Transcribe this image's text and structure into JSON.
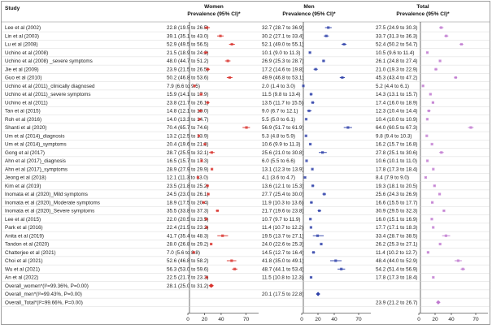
{
  "chart_data": {
    "type": "forest",
    "title": "",
    "study_header": "Study",
    "panels": [
      {
        "name": "Women",
        "subtitle": "Prevalence (95% CI)*",
        "color": "#d9322c",
        "ticks": [
          0,
          20,
          40,
          70
        ],
        "xlim": [
          0,
          85
        ]
      },
      {
        "name": "Men",
        "subtitle": "Prevalence (95% CI)*",
        "color": "#2c3fa8",
        "ticks": [
          0,
          20,
          40,
          70
        ],
        "xlim": [
          0,
          85
        ]
      },
      {
        "name": "Total",
        "subtitle": "Prevalence (95% CI)*",
        "color": "#c07ad0",
        "ticks": [
          0,
          20,
          40,
          70
        ],
        "xlim": [
          0,
          85
        ]
      }
    ],
    "rows": [
      {
        "study": "Lee et al (2002)",
        "women": [
          22.8,
          19.5,
          26.5
        ],
        "men": [
          32.7,
          28.7,
          36.9
        ],
        "total": [
          27.5,
          24.9,
          30.3
        ]
      },
      {
        "study": "Lin et al (2003)",
        "women": [
          39.1,
          35.1,
          43.0
        ],
        "men": [
          30.2,
          27.1,
          33.4
        ],
        "total": [
          33.7,
          31.3,
          36.3
        ]
      },
      {
        "study": "Lu et al (2008)",
        "women": [
          52.9,
          49.5,
          56.5
        ],
        "men": [
          52.1,
          49.0,
          55.1
        ],
        "total": [
          52.4,
          50.2,
          54.7
        ]
      },
      {
        "study": "Uchino et al (2008)",
        "women": [
          21.5,
          18.9,
          24.2
        ],
        "men": [
          10.1,
          9.0,
          11.3
        ],
        "total": [
          10.5,
          9.6,
          11.4
        ]
      },
      {
        "study": "Uchino et al (2008) _severe symptoms",
        "women": [
          48.0,
          44.7,
          51.2
        ],
        "men": [
          26.9,
          25.3,
          28.7
        ],
        "total": [
          26.1,
          24.8,
          27.4
        ]
      },
      {
        "study": "Jie et al (2009)",
        "women": [
          23.9,
          21.5,
          26.5
        ],
        "men": [
          17.2,
          14.6,
          19.8
        ],
        "total": [
          21.0,
          19.3,
          22.9
        ]
      },
      {
        "study": "Guo et al (2010)",
        "women": [
          50.2,
          46.8,
          53.6
        ],
        "men": [
          49.9,
          46.8,
          53.1
        ],
        "total": [
          45.3,
          43.4,
          47.2
        ]
      },
      {
        "study": "Uchino et al (2011)_clinically diagnosed",
        "women": [
          7.9,
          6.6,
          9.5
        ],
        "men": [
          2.0,
          1.4,
          3.0
        ],
        "total": [
          5.2,
          4.4,
          6.1
        ]
      },
      {
        "study": "Uchino et al (2011)_severe symptoms",
        "women": [
          15.9,
          14.1,
          17.9
        ],
        "men": [
          11.5,
          9.8,
          13.4
        ],
        "total": [
          14.3,
          13.1,
          15.7
        ]
      },
      {
        "study": "Uchino et al (2011)",
        "women": [
          23.8,
          21.7,
          26.1
        ],
        "men": [
          13.5,
          11.7,
          15.5
        ],
        "total": [
          17.4,
          16.0,
          18.9
        ]
      },
      {
        "study": "Tan et al (2015)",
        "women": [
          14.8,
          12.1,
          18.0
        ],
        "men": [
          9.0,
          6.7,
          12.1
        ],
        "total": [
          12.3,
          10.4,
          14.4
        ]
      },
      {
        "study": "Roh et al (2016)",
        "women": [
          14.0,
          13.3,
          14.7
        ],
        "men": [
          5.5,
          5.0,
          6.1
        ],
        "total": [
          10.4,
          10.0,
          10.9
        ]
      },
      {
        "study": "Shanti et al (2020)",
        "women": [
          70.4,
          65.7,
          74.6
        ],
        "men": [
          56.9,
          51.7,
          61.9
        ],
        "total": [
          64.0,
          60.5,
          67.3
        ]
      },
      {
        "study": "Um et al (2014)_diagnosis",
        "women": [
          13.2,
          12.5,
          13.9
        ],
        "men": [
          5.3,
          4.8,
          5.9
        ],
        "total": [
          9.8,
          9.4,
          10.3
        ]
      },
      {
        "study": "Um et al (2014)_symptoms",
        "women": [
          20.4,
          19.6,
          21.3
        ],
        "men": [
          10.6,
          9.9,
          11.3
        ],
        "total": [
          16.2,
          15.7,
          16.8
        ]
      },
      {
        "study": "Gong et al (2017)",
        "women": [
          28.7,
          25.5,
          32.1
        ],
        "men": [
          25.6,
          21.0,
          30.8
        ],
        "total": [
          27.8,
          25.1,
          30.6
        ]
      },
      {
        "study": "Ahn et al (2017)_diagnosis",
        "women": [
          16.5,
          15.7,
          17.3
        ],
        "men": [
          6.0,
          5.5,
          6.6
        ],
        "total": [
          10.6,
          10.1,
          11.0
        ]
      },
      {
        "study": "Ahn et al (2017)_symptoms",
        "women": [
          28.9,
          27.9,
          29.9
        ],
        "men": [
          13.1,
          12.3,
          13.9
        ],
        "total": [
          17.8,
          17.3,
          18.4
        ]
      },
      {
        "study": "Jeong et al (2018)",
        "women": [
          12.1,
          11.3,
          13.0
        ],
        "men": [
          4.1,
          3.6,
          4.7
        ],
        "total": [
          8.4,
          7.9,
          9.0
        ]
      },
      {
        "study": "Kim et al (2019)",
        "women": [
          23.5,
          21.8,
          25.2
        ],
        "men": [
          13.6,
          12.1,
          15.3
        ],
        "total": [
          19.3,
          18.1,
          20.5
        ]
      },
      {
        "study": "Inomata et al (2020)_Mild symptoms",
        "women": [
          24.5,
          23.0,
          26.1
        ],
        "men": [
          27.7,
          25.4,
          30.0
        ],
        "total": [
          25.6,
          24.3,
          26.9
        ]
      },
      {
        "study": "Inomata et al (2020)_Moderate symptoms",
        "women": [
          18.9,
          17.5,
          20.4
        ],
        "men": [
          11.9,
          10.3,
          13.6
        ],
        "total": [
          16.6,
          15.5,
          17.7
        ]
      },
      {
        "study": "Inomata et al (2020)_Severe symptoms",
        "women": [
          35.5,
          33.8,
          37.3
        ],
        "men": [
          21.7,
          19.6,
          23.8
        ],
        "total": [
          30.9,
          29.5,
          32.3
        ]
      },
      {
        "study": "Lee et al (2015)",
        "women": [
          22.0,
          20.5,
          23.5
        ],
        "men": [
          10.7,
          9.7,
          11.9
        ],
        "total": [
          16.0,
          15.1,
          16.9
        ]
      },
      {
        "study": "Park et al (2016)",
        "women": [
          22.4,
          21.5,
          23.2
        ],
        "men": [
          11.4,
          10.7,
          12.2
        ],
        "total": [
          17.7,
          17.1,
          18.3
        ]
      },
      {
        "study": "Anita et al (2019)",
        "women": [
          41.7,
          35.4,
          48.3
        ],
        "men": [
          19.5,
          13.7,
          27.1
        ],
        "total": [
          33.4,
          28.7,
          38.5
        ]
      },
      {
        "study": "Tandon et al (2020)",
        "women": [
          28.0,
          26.8,
          29.2
        ],
        "men": [
          24.0,
          22.6,
          25.3
        ],
        "total": [
          26.2,
          25.3,
          27.1
        ]
      },
      {
        "study": "Chatterjee et al (2021)",
        "women": [
          7.0,
          5.6,
          8.8
        ],
        "men": [
          14.5,
          12.7,
          16.4
        ],
        "total": [
          11.4,
          10.2,
          12.7
        ]
      },
      {
        "study": "Choi et al (2021)",
        "women": [
          52.6,
          46.8,
          58.2
        ],
        "men": [
          41.8,
          35.0,
          49.1
        ],
        "total": [
          48.4,
          44.0,
          52.9
        ]
      },
      {
        "study": "Wu et al (2021)",
        "women": [
          56.3,
          53.0,
          59.6
        ],
        "men": [
          48.7,
          44.1,
          53.4
        ],
        "total": [
          54.2,
          51.4,
          56.9
        ]
      },
      {
        "study": "An et al (2022)",
        "women": [
          22.5,
          21.7,
          23.3
        ],
        "men": [
          11.5,
          10.8,
          12.3
        ],
        "total": [
          17.8,
          17.3,
          18.4
        ]
      }
    ],
    "overall": [
      {
        "label": "Overall_women*(I²=99.36%, P=0.00)",
        "panel": "women",
        "ci": [
          28.1,
          25.0,
          31.2
        ]
      },
      {
        "label": "Overall_men*(I²=99.43%, P=0.00)",
        "panel": "men",
        "ci": [
          20.1,
          17.5,
          22.8
        ]
      },
      {
        "label": "Overall_Total*(I²=99.66%, P=0.00)",
        "panel": "total",
        "ci": [
          23.9,
          21.2,
          26.7
        ]
      }
    ]
  }
}
